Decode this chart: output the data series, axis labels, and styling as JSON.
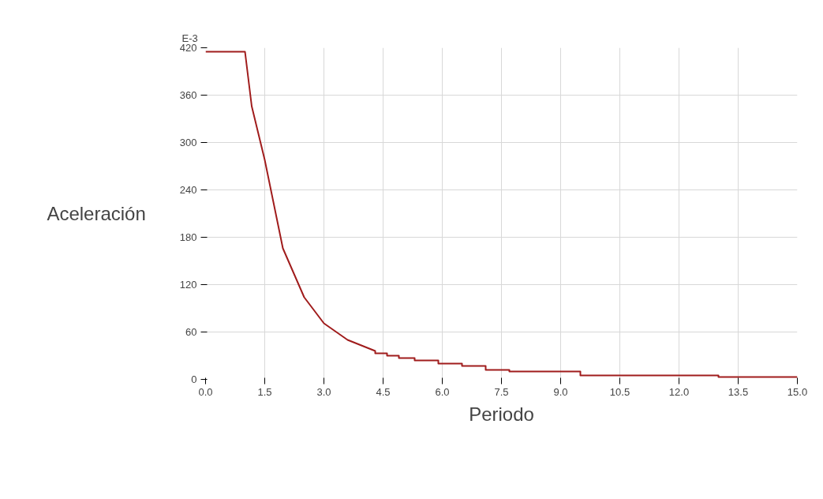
{
  "chart_data": {
    "type": "line",
    "xlabel": "Periodo",
    "ylabel": "Aceleración",
    "annotations": [
      "E-3"
    ],
    "x": [
      0,
      1.0,
      1.17,
      1.5,
      1.96,
      2.5,
      3.0,
      3.6,
      4.3,
      4.3,
      4.6,
      4.6,
      4.9,
      4.9,
      5.3,
      5.3,
      5.9,
      5.9,
      6.5,
      6.5,
      7.1,
      7.1,
      7.7,
      7.7,
      9.5,
      9.5,
      13.0,
      13.0,
      15.0
    ],
    "series": [
      {
        "color": "#a01c1c",
        "values": [
          415,
          415,
          346,
          278,
          166,
          104,
          71,
          50,
          36,
          33,
          33,
          30,
          30,
          27,
          27,
          24,
          24,
          20,
          20,
          17,
          17,
          12,
          12,
          10,
          10,
          5,
          5,
          3,
          3
        ]
      }
    ],
    "xlim": [
      0,
      15
    ],
    "ylim": [
      0,
      420
    ],
    "xticks": [
      {
        "value": 0,
        "label": "0.0"
      },
      {
        "value": 1.5,
        "label": "1.5"
      },
      {
        "value": 3,
        "label": "3.0"
      },
      {
        "value": 4.5,
        "label": "4.5"
      },
      {
        "value": 6,
        "label": "6.0"
      },
      {
        "value": 7.5,
        "label": "7.5"
      },
      {
        "value": 9,
        "label": "9.0"
      },
      {
        "value": 10.5,
        "label": "10.5"
      },
      {
        "value": 12,
        "label": "12.0"
      },
      {
        "value": 13.5,
        "label": "13.5"
      },
      {
        "value": 15,
        "label": "15.0"
      }
    ],
    "yticks": [
      0,
      60,
      120,
      180,
      240,
      300,
      360,
      420
    ],
    "grid": true,
    "marker": "none",
    "line_style": "solid"
  }
}
